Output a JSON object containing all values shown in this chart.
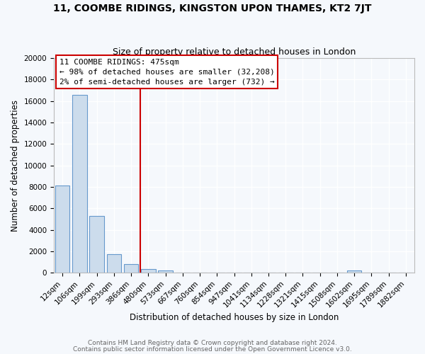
{
  "title1": "11, COOMBE RIDINGS, KINGSTON UPON THAMES, KT2 7JT",
  "title2": "Size of property relative to detached houses in London",
  "xlabel": "Distribution of detached houses by size in London",
  "ylabel": "Number of detached properties",
  "bar_labels": [
    "12sqm",
    "106sqm",
    "199sqm",
    "293sqm",
    "386sqm",
    "480sqm",
    "573sqm",
    "667sqm",
    "760sqm",
    "854sqm",
    "947sqm",
    "1041sqm",
    "1134sqm",
    "1228sqm",
    "1321sqm",
    "1415sqm",
    "1508sqm",
    "1602sqm",
    "1695sqm",
    "1789sqm",
    "1882sqm"
  ],
  "bar_heights": [
    8100,
    16600,
    5300,
    1750,
    800,
    350,
    200,
    0,
    0,
    0,
    0,
    0,
    0,
    0,
    0,
    0,
    0,
    180,
    0,
    0,
    0
  ],
  "bar_color": "#ccdcec",
  "bar_edge_color": "#6699cc",
  "annotation_box_color": "#ffffff",
  "annotation_box_edge": "#cc0000",
  "vline_color": "#cc0000",
  "annotation_title": "11 COOMBE RIDINGS: 475sqm",
  "annotation_line1": "← 98% of detached houses are smaller (32,208)",
  "annotation_line2": "2% of semi-detached houses are larger (732) →",
  "ylim": [
    0,
    20000
  ],
  "yticks": [
    0,
    2000,
    4000,
    6000,
    8000,
    10000,
    12000,
    14000,
    16000,
    18000,
    20000
  ],
  "footer1": "Contains HM Land Registry data © Crown copyright and database right 2024.",
  "footer2": "Contains public sector information licensed under the Open Government Licence v3.0.",
  "bg_color": "#f5f8fc",
  "grid_color": "#ffffff",
  "title_fontsize": 10,
  "subtitle_fontsize": 9,
  "axis_label_fontsize": 8.5,
  "tick_fontsize": 7.5,
  "annotation_fontsize": 8,
  "footer_fontsize": 6.5
}
